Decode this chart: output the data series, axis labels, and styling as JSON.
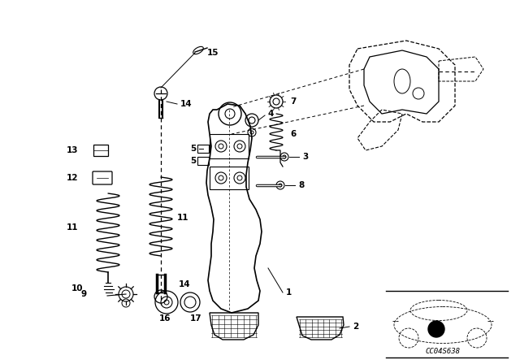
{
  "bg_color": "#ffffff",
  "fig_width": 6.4,
  "fig_height": 4.48,
  "dpi": 100,
  "diagram_code": "CC04S638",
  "line_color": "#000000",
  "text_color": "#000000",
  "font_size": 7.5,
  "font_size_small": 6,
  "lw_main": 0.9,
  "lw_thin": 0.6,
  "lw_dashed": 0.6
}
